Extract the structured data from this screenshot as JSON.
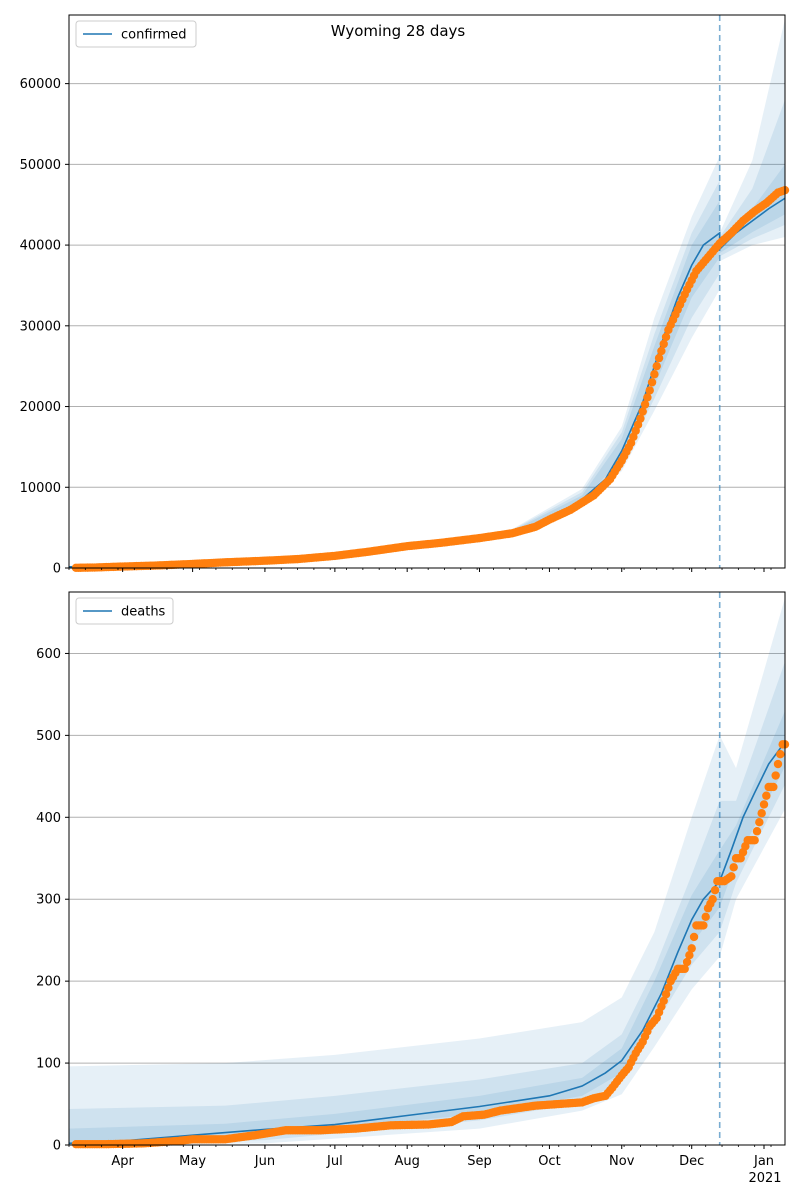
{
  "colors": {
    "line": "#1f77b4",
    "points": "#ff7f0e",
    "band": "#1f77b4",
    "grid": "#b0b0b0",
    "vline": "#1f77b4"
  },
  "chart_data": [
    {
      "type": "line",
      "title": "Wyoming 28 days",
      "legend": "confirmed",
      "legend_position": "top-left",
      "grid": "horizontal",
      "xlim": [
        "2020-03-09",
        "2021-01-10"
      ],
      "ylim": [
        0,
        68500
      ],
      "yticks": [
        0,
        10000,
        20000,
        30000,
        40000,
        50000,
        60000
      ],
      "forecast_start": "2020-12-13",
      "median": [
        [
          "2020-03-09",
          150
        ],
        [
          "2020-04-01",
          250
        ],
        [
          "2020-05-01",
          600
        ],
        [
          "2020-06-01",
          950
        ],
        [
          "2020-07-01",
          1500
        ],
        [
          "2020-08-01",
          2700
        ],
        [
          "2020-08-15",
          3200
        ],
        [
          "2020-09-01",
          3800
        ],
        [
          "2020-09-15",
          4400
        ],
        [
          "2020-10-01",
          6000
        ],
        [
          "2020-10-15",
          8500
        ],
        [
          "2020-10-25",
          11000
        ],
        [
          "2020-11-01",
          14500
        ],
        [
          "2020-11-10",
          20500
        ],
        [
          "2020-11-15",
          25000
        ],
        [
          "2020-11-20",
          29500
        ],
        [
          "2020-11-25",
          33500
        ],
        [
          "2020-12-01",
          37500
        ],
        [
          "2020-12-06",
          40000
        ],
        [
          "2020-12-13",
          41500
        ],
        [
          "2020-12-13",
          39500
        ],
        [
          "2020-12-20",
          41500
        ],
        [
          "2020-12-27",
          43000
        ],
        [
          "2021-01-03",
          44500
        ],
        [
          "2021-01-10",
          45800
        ]
      ],
      "bands": [
        {
          "lo": [
            [
              "2020-09-15",
              4100
            ],
            [
              "2020-10-15",
              8000
            ],
            [
              "2020-11-01",
              12000
            ],
            [
              "2020-11-15",
              19500
            ],
            [
              "2020-12-01",
              28500
            ],
            [
              "2020-12-13",
              34500
            ],
            [
              "2020-12-13",
              38000
            ],
            [
              "2020-12-27",
              40000
            ],
            [
              "2021-01-10",
              41000
            ]
          ],
          "hi": [
            [
              "2020-09-15",
              4800
            ],
            [
              "2020-10-15",
              9800
            ],
            [
              "2020-11-01",
              17500
            ],
            [
              "2020-11-15",
              31000
            ],
            [
              "2020-12-01",
              43500
            ],
            [
              "2020-12-13",
              51000
            ],
            [
              "2020-12-13",
              41500
            ],
            [
              "2020-12-27",
              50500
            ],
            [
              "2021-01-10",
              68000
            ]
          ]
        },
        {
          "lo": [
            [
              "2020-09-15",
              4200
            ],
            [
              "2020-10-15",
              8200
            ],
            [
              "2020-11-01",
              12800
            ],
            [
              "2020-11-15",
              21000
            ],
            [
              "2020-12-01",
              31000
            ],
            [
              "2020-12-13",
              36500
            ],
            [
              "2020-12-13",
              38600
            ],
            [
              "2020-12-27",
              40800
            ],
            [
              "2021-01-10",
              42500
            ]
          ],
          "hi": [
            [
              "2020-09-15",
              4700
            ],
            [
              "2020-10-15",
              9400
            ],
            [
              "2020-11-01",
              16800
            ],
            [
              "2020-11-15",
              29000
            ],
            [
              "2020-12-01",
              41500
            ],
            [
              "2020-12-13",
              48000
            ],
            [
              "2020-12-13",
              41000
            ],
            [
              "2020-12-27",
              47000
            ],
            [
              "2021-01-10",
              58000
            ]
          ]
        },
        {
          "lo": [
            [
              "2020-09-15",
              4300
            ],
            [
              "2020-10-15",
              8300
            ],
            [
              "2020-11-01",
              13500
            ],
            [
              "2020-11-15",
              22500
            ],
            [
              "2020-12-01",
              33500
            ],
            [
              "2020-12-13",
              38500
            ],
            [
              "2020-12-13",
              39000
            ],
            [
              "2020-12-27",
              41600
            ],
            [
              "2021-01-10",
              43800
            ]
          ],
          "hi": [
            [
              "2020-09-15",
              4600
            ],
            [
              "2020-10-15",
              9000
            ],
            [
              "2020-11-01",
              16000
            ],
            [
              "2020-11-15",
              27500
            ],
            [
              "2020-12-01",
              40000
            ],
            [
              "2020-12-13",
              45500
            ],
            [
              "2020-12-13",
              40500
            ],
            [
              "2020-12-27",
              44500
            ],
            [
              "2021-01-10",
              50000
            ]
          ]
        }
      ],
      "observed": [
        [
          "2020-03-12",
          20
        ],
        [
          "2020-03-20",
          60
        ],
        [
          "2020-04-01",
          180
        ],
        [
          "2020-04-15",
          300
        ],
        [
          "2020-05-01",
          500
        ],
        [
          "2020-05-15",
          700
        ],
        [
          "2020-06-01",
          900
        ],
        [
          "2020-06-15",
          1100
        ],
        [
          "2020-07-01",
          1500
        ],
        [
          "2020-07-15",
          2000
        ],
        [
          "2020-08-01",
          2700
        ],
        [
          "2020-08-15",
          3100
        ],
        [
          "2020-09-01",
          3700
        ],
        [
          "2020-09-15",
          4300
        ],
        [
          "2020-09-25",
          5100
        ],
        [
          "2020-10-01",
          6000
        ],
        [
          "2020-10-10",
          7200
        ],
        [
          "2020-10-20",
          9000
        ],
        [
          "2020-10-27",
          11000
        ],
        [
          "2020-11-01",
          13300
        ],
        [
          "2020-11-05",
          15500
        ],
        [
          "2020-11-09",
          18500
        ],
        [
          "2020-11-13",
          22000
        ],
        [
          "2020-11-17",
          26000
        ],
        [
          "2020-11-21",
          29500
        ],
        [
          "2020-11-25",
          32000
        ],
        [
          "2020-11-29",
          34500
        ],
        [
          "2020-12-03",
          36800
        ],
        [
          "2020-12-08",
          38500
        ],
        [
          "2020-12-13",
          40200
        ],
        [
          "2020-12-18",
          41500
        ],
        [
          "2020-12-23",
          43000
        ],
        [
          "2020-12-28",
          44200
        ],
        [
          "2021-01-02",
          45200
        ],
        [
          "2021-01-07",
          46500
        ],
        [
          "2021-01-10",
          46800
        ]
      ]
    },
    {
      "type": "line",
      "title": "",
      "legend": "deaths",
      "legend_position": "top-left",
      "grid": "horizontal",
      "xlim": [
        "2020-03-09",
        "2021-01-10"
      ],
      "ylim": [
        0,
        675
      ],
      "yticks": [
        0,
        100,
        200,
        300,
        400,
        500,
        600
      ],
      "xticks": [
        "Apr",
        "May",
        "Jun",
        "Jul",
        "Aug",
        "Sep",
        "Oct",
        "Nov",
        "Dec",
        "Jan"
      ],
      "xtick_dates": [
        "2020-04-01",
        "2020-05-01",
        "2020-06-01",
        "2020-07-01",
        "2020-08-01",
        "2020-09-01",
        "2020-10-01",
        "2020-11-01",
        "2020-12-01",
        "2021-01-01"
      ],
      "year_label": "2021",
      "forecast_start": "2020-12-13",
      "median": [
        [
          "2020-03-09",
          2
        ],
        [
          "2020-04-01",
          5
        ],
        [
          "2020-05-01",
          12
        ],
        [
          "2020-06-01",
          19
        ],
        [
          "2020-07-01",
          25
        ],
        [
          "2020-08-01",
          36
        ],
        [
          "2020-09-01",
          47
        ],
        [
          "2020-10-01",
          60
        ],
        [
          "2020-10-15",
          72
        ],
        [
          "2020-10-25",
          88
        ],
        [
          "2020-11-01",
          103
        ],
        [
          "2020-11-10",
          140
        ],
        [
          "2020-11-18",
          185
        ],
        [
          "2020-11-25",
          235
        ],
        [
          "2020-12-01",
          275
        ],
        [
          "2020-12-06",
          300
        ],
        [
          "2020-12-13",
          322
        ],
        [
          "2020-12-18",
          360
        ],
        [
          "2020-12-23",
          400
        ],
        [
          "2020-12-28",
          430
        ],
        [
          "2021-01-03",
          465
        ],
        [
          "2021-01-10",
          492
        ]
      ],
      "bands": [
        {
          "lo": [
            [
              "2020-03-09",
              0
            ],
            [
              "2020-06-01",
              2
            ],
            [
              "2020-09-01",
              20
            ],
            [
              "2020-10-15",
              42
            ],
            [
              "2020-11-01",
              62
            ],
            [
              "2020-11-15",
              120
            ],
            [
              "2020-12-01",
              190
            ],
            [
              "2020-12-13",
              230
            ],
            [
              "2020-12-20",
              300
            ],
            [
              "2021-01-10",
              410
            ]
          ],
          "hi": [
            [
              "2020-03-09",
              96
            ],
            [
              "2020-05-15",
              100
            ],
            [
              "2020-07-01",
              110
            ],
            [
              "2020-09-01",
              130
            ],
            [
              "2020-10-15",
              150
            ],
            [
              "2020-11-01",
              180
            ],
            [
              "2020-11-15",
              260
            ],
            [
              "2020-12-01",
              400
            ],
            [
              "2020-12-13",
              500
            ],
            [
              "2020-12-20",
              460
            ],
            [
              "2021-01-10",
              668
            ]
          ]
        },
        {
          "lo": [
            [
              "2020-03-09",
              0
            ],
            [
              "2020-06-01",
              6
            ],
            [
              "2020-09-01",
              30
            ],
            [
              "2020-10-15",
              52
            ],
            [
              "2020-11-01",
              78
            ],
            [
              "2020-11-15",
              145
            ],
            [
              "2020-12-01",
              220
            ],
            [
              "2020-12-13",
              260
            ],
            [
              "2020-12-20",
              320
            ],
            [
              "2021-01-10",
              440
            ]
          ],
          "hi": [
            [
              "2020-03-09",
              44
            ],
            [
              "2020-05-15",
              48
            ],
            [
              "2020-07-01",
              60
            ],
            [
              "2020-09-01",
              80
            ],
            [
              "2020-10-15",
              100
            ],
            [
              "2020-11-01",
              135
            ],
            [
              "2020-11-15",
              215
            ],
            [
              "2020-12-01",
              330
            ],
            [
              "2020-12-13",
              420
            ],
            [
              "2020-12-20",
              420
            ],
            [
              "2021-01-10",
              590
            ]
          ]
        },
        {
          "lo": [
            [
              "2020-03-09",
              1
            ],
            [
              "2020-06-01",
              12
            ],
            [
              "2020-09-01",
              38
            ],
            [
              "2020-10-15",
              60
            ],
            [
              "2020-11-01",
              88
            ],
            [
              "2020-11-15",
              162
            ],
            [
              "2020-12-01",
              245
            ],
            [
              "2020-12-13",
              290
            ],
            [
              "2020-12-20",
              345
            ],
            [
              "2021-01-10",
              462
            ]
          ],
          "hi": [
            [
              "2020-03-09",
              20
            ],
            [
              "2020-05-15",
              26
            ],
            [
              "2020-07-01",
              38
            ],
            [
              "2020-09-01",
              60
            ],
            [
              "2020-10-15",
              82
            ],
            [
              "2020-11-01",
              118
            ],
            [
              "2020-11-15",
              200
            ],
            [
              "2020-12-01",
              305
            ],
            [
              "2020-12-13",
              360
            ],
            [
              "2020-12-20",
              390
            ],
            [
              "2021-01-10",
              530
            ]
          ]
        }
      ],
      "observed": [
        [
          "2020-03-12",
          1
        ],
        [
          "2020-03-25",
          1
        ],
        [
          "2020-04-10",
          2
        ],
        [
          "2020-04-25",
          5
        ],
        [
          "2020-05-01",
          7
        ],
        [
          "2020-05-15",
          7
        ],
        [
          "2020-05-28",
          12
        ],
        [
          "2020-06-10",
          18
        ],
        [
          "2020-06-25",
          18
        ],
        [
          "2020-07-10",
          20
        ],
        [
          "2020-07-25",
          24
        ],
        [
          "2020-08-10",
          25
        ],
        [
          "2020-08-20",
          28
        ],
        [
          "2020-08-25",
          35
        ],
        [
          "2020-09-03",
          37
        ],
        [
          "2020-09-10",
          42
        ],
        [
          "2020-09-25",
          48
        ],
        [
          "2020-10-05",
          50
        ],
        [
          "2020-10-15",
          52
        ],
        [
          "2020-10-20",
          57
        ],
        [
          "2020-10-25",
          60
        ],
        [
          "2020-10-28",
          70
        ],
        [
          "2020-11-01",
          85
        ],
        [
          "2020-11-04",
          95
        ],
        [
          "2020-11-07",
          112
        ],
        [
          "2020-11-10",
          126
        ],
        [
          "2020-11-13",
          145
        ],
        [
          "2020-11-16",
          155
        ],
        [
          "2020-11-19",
          176
        ],
        [
          "2020-11-22",
          200
        ],
        [
          "2020-11-25",
          215
        ],
        [
          "2020-11-28",
          215
        ],
        [
          "2020-12-01",
          240
        ],
        [
          "2020-12-03",
          268
        ],
        [
          "2020-12-06",
          268
        ],
        [
          "2020-12-08",
          289
        ],
        [
          "2020-12-10",
          300
        ],
        [
          "2020-12-12",
          322
        ],
        [
          "2020-12-15",
          322
        ],
        [
          "2020-12-18",
          328
        ],
        [
          "2020-12-20",
          350
        ],
        [
          "2020-12-22",
          350
        ],
        [
          "2020-12-25",
          372
        ],
        [
          "2020-12-28",
          372
        ],
        [
          "2020-12-31",
          405
        ],
        [
          "2021-01-03",
          437
        ],
        [
          "2021-01-05",
          437
        ],
        [
          "2021-01-07",
          465
        ],
        [
          "2021-01-09",
          489
        ],
        [
          "2021-01-10",
          489
        ]
      ]
    }
  ]
}
